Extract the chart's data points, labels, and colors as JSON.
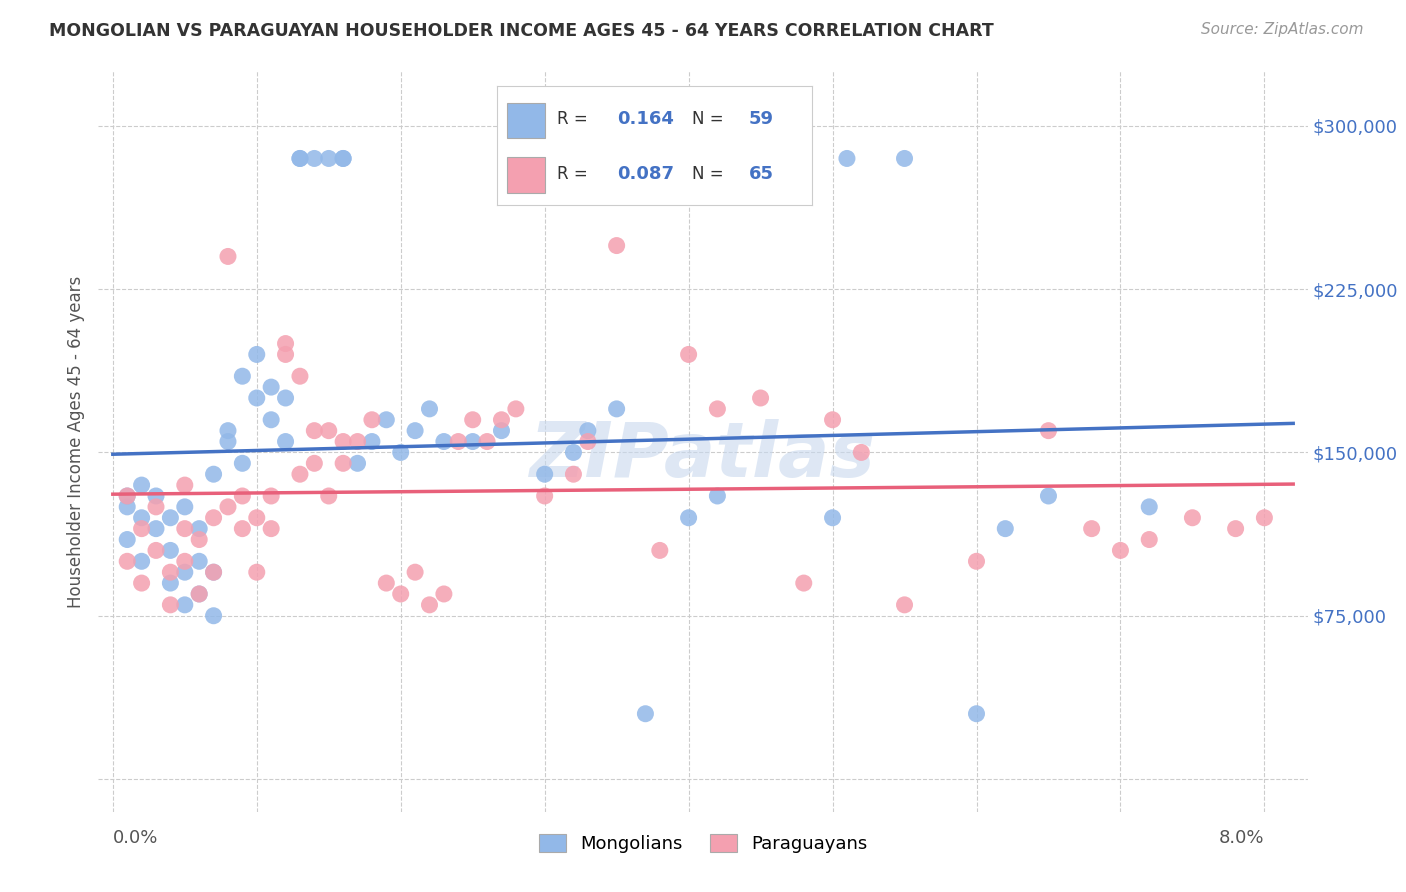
{
  "title": "MONGOLIAN VS PARAGUAYAN HOUSEHOLDER INCOME AGES 45 - 64 YEARS CORRELATION CHART",
  "source": "Source: ZipAtlas.com",
  "ylabel": "Householder Income Ages 45 - 64 years",
  "r_mongolian": 0.164,
  "n_mongolian": 59,
  "r_paraguayan": 0.087,
  "n_paraguayan": 65,
  "legend_mongolians": "Mongolians",
  "legend_paraguayans": "Paraguayans",
  "yticks": [
    0,
    75000,
    150000,
    225000,
    300000
  ],
  "ytick_labels": [
    "",
    "$75,000",
    "$150,000",
    "$225,000",
    "$300,000"
  ],
  "xticks": [
    0.0,
    0.01,
    0.02,
    0.03,
    0.04,
    0.05,
    0.06,
    0.07,
    0.08
  ],
  "xlim": [
    -0.001,
    0.083
  ],
  "ylim": [
    -15000,
    325000
  ],
  "color_mongolian": "#92B8E8",
  "color_paraguayan": "#F4A0B0",
  "line_color_mongolian": "#4472C4",
  "line_color_paraguayan": "#E8607A",
  "title_color": "#333333",
  "source_color": "#999999",
  "axis_label_color": "#555555",
  "tick_label_color_y": "#4472C4",
  "mongolian_x": [
    0.001,
    0.001,
    0.002,
    0.002,
    0.003,
    0.003,
    0.004,
    0.004,
    0.004,
    0.005,
    0.005,
    0.005,
    0.006,
    0.006,
    0.006,
    0.007,
    0.007,
    0.007,
    0.008,
    0.008,
    0.009,
    0.009,
    0.01,
    0.01,
    0.011,
    0.011,
    0.012,
    0.012,
    0.013,
    0.013,
    0.014,
    0.015,
    0.016,
    0.016,
    0.017,
    0.018,
    0.019,
    0.02,
    0.021,
    0.022,
    0.023,
    0.025,
    0.027,
    0.03,
    0.032,
    0.033,
    0.035,
    0.037,
    0.04,
    0.042,
    0.05,
    0.051,
    0.055,
    0.06,
    0.062,
    0.065,
    0.072,
    0.001,
    0.002
  ],
  "mongolian_y": [
    125000,
    110000,
    135000,
    100000,
    130000,
    115000,
    90000,
    105000,
    120000,
    80000,
    95000,
    125000,
    85000,
    100000,
    115000,
    75000,
    95000,
    140000,
    160000,
    155000,
    185000,
    145000,
    175000,
    195000,
    180000,
    165000,
    155000,
    175000,
    285000,
    285000,
    285000,
    285000,
    285000,
    285000,
    145000,
    155000,
    165000,
    150000,
    160000,
    170000,
    155000,
    155000,
    160000,
    140000,
    150000,
    160000,
    170000,
    30000,
    120000,
    130000,
    120000,
    285000,
    285000,
    30000,
    115000,
    130000,
    125000,
    130000,
    120000
  ],
  "paraguayan_x": [
    0.001,
    0.001,
    0.002,
    0.002,
    0.003,
    0.003,
    0.004,
    0.004,
    0.005,
    0.005,
    0.005,
    0.006,
    0.006,
    0.007,
    0.007,
    0.008,
    0.008,
    0.009,
    0.009,
    0.01,
    0.01,
    0.011,
    0.011,
    0.012,
    0.012,
    0.013,
    0.013,
    0.014,
    0.014,
    0.015,
    0.015,
    0.016,
    0.016,
    0.017,
    0.018,
    0.019,
    0.02,
    0.021,
    0.022,
    0.023,
    0.024,
    0.025,
    0.026,
    0.027,
    0.028,
    0.03,
    0.032,
    0.033,
    0.035,
    0.038,
    0.04,
    0.042,
    0.045,
    0.048,
    0.05,
    0.052,
    0.055,
    0.06,
    0.065,
    0.068,
    0.07,
    0.072,
    0.075,
    0.078,
    0.08
  ],
  "paraguayan_y": [
    130000,
    100000,
    115000,
    90000,
    125000,
    105000,
    80000,
    95000,
    135000,
    115000,
    100000,
    85000,
    110000,
    120000,
    95000,
    240000,
    125000,
    130000,
    115000,
    95000,
    120000,
    130000,
    115000,
    200000,
    195000,
    185000,
    140000,
    160000,
    145000,
    160000,
    130000,
    155000,
    145000,
    155000,
    165000,
    90000,
    85000,
    95000,
    80000,
    85000,
    155000,
    165000,
    155000,
    165000,
    170000,
    130000,
    140000,
    155000,
    245000,
    105000,
    195000,
    170000,
    175000,
    90000,
    165000,
    150000,
    80000,
    100000,
    160000,
    115000,
    105000,
    110000,
    120000,
    115000,
    120000
  ]
}
